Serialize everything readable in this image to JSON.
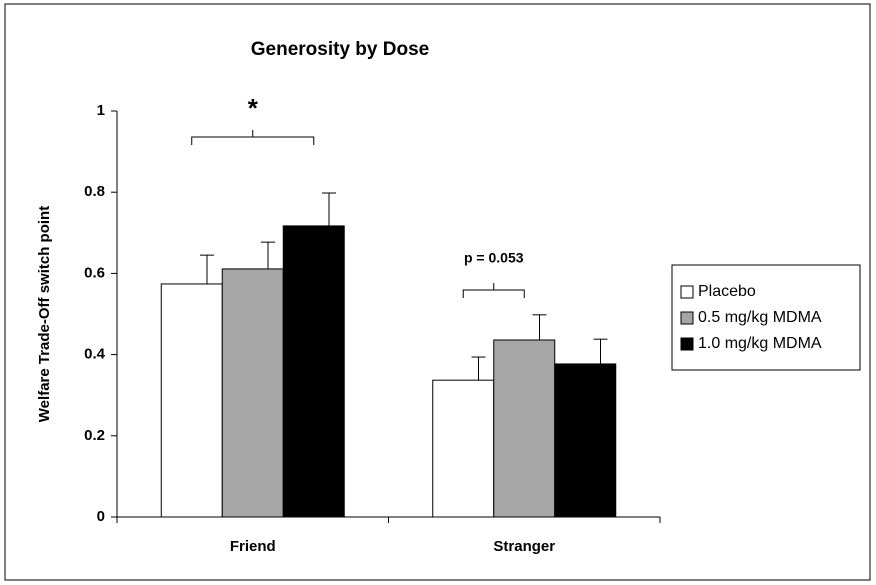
{
  "chart_data": {
    "type": "bar",
    "title": "Generosity by Dose",
    "y_label": "Welfare Trade-Off switch point",
    "categories": [
      "Friend",
      "Stranger"
    ],
    "series": [
      {
        "name": "Placebo",
        "color": "#ffffff",
        "values": [
          0.574,
          0.337
        ],
        "errors": [
          0.071,
          0.057
        ]
      },
      {
        "name": "0.5 mg/kg MDMA",
        "color": "#a6a6a6",
        "values": [
          0.611,
          0.436
        ],
        "errors": [
          0.066,
          0.062
        ]
      },
      {
        "name": "1.0 mg/kg MDMA",
        "color": "#000000",
        "values": [
          0.717,
          0.377
        ],
        "errors": [
          0.081,
          0.061
        ]
      }
    ],
    "annotations": [
      "*",
      "p = 0.053"
    ],
    "ylim": [
      0,
      1
    ],
    "yticks": [
      0,
      0.2,
      0.4,
      0.6,
      0.8,
      1
    ],
    "grid": false,
    "legend": "right"
  }
}
